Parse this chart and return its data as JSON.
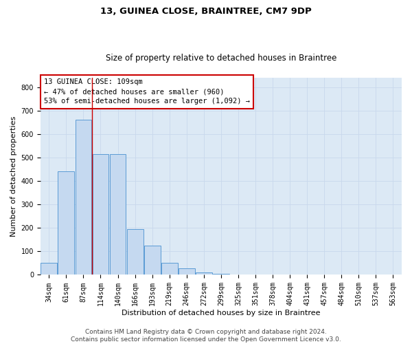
{
  "title": "13, GUINEA CLOSE, BRAINTREE, CM7 9DP",
  "subtitle": "Size of property relative to detached houses in Braintree",
  "xlabel": "Distribution of detached houses by size in Braintree",
  "ylabel": "Number of detached properties",
  "bar_labels": [
    "34sqm",
    "61sqm",
    "87sqm",
    "114sqm",
    "140sqm",
    "166sqm",
    "193sqm",
    "219sqm",
    "246sqm",
    "272sqm",
    "299sqm",
    "325sqm",
    "351sqm",
    "378sqm",
    "404sqm",
    "431sqm",
    "457sqm",
    "484sqm",
    "510sqm",
    "537sqm",
    "563sqm"
  ],
  "bar_values": [
    50,
    440,
    660,
    515,
    515,
    195,
    125,
    50,
    27,
    10,
    3,
    2,
    0,
    0,
    0,
    0,
    0,
    0,
    0,
    0,
    0
  ],
  "bar_color": "#c5d9f0",
  "bar_edge_color": "#5b9bd5",
  "property_line_x": 2.5,
  "annotation_text": "13 GUINEA CLOSE: 109sqm\n← 47% of detached houses are smaller (960)\n53% of semi-detached houses are larger (1,092) →",
  "annotation_box_color": "#ffffff",
  "annotation_box_edge_color": "#cc0000",
  "vline_color": "#cc0000",
  "ylim": [
    0,
    840
  ],
  "yticks": [
    0,
    100,
    200,
    300,
    400,
    500,
    600,
    700,
    800
  ],
  "grid_color": "#c8d8ec",
  "background_color": "#dce9f5",
  "footer_line1": "Contains HM Land Registry data © Crown copyright and database right 2024.",
  "footer_line2": "Contains public sector information licensed under the Open Government Licence v3.0.",
  "title_fontsize": 9.5,
  "subtitle_fontsize": 8.5,
  "axis_label_fontsize": 8,
  "tick_fontsize": 7,
  "annotation_fontsize": 7.5,
  "footer_fontsize": 6.5
}
